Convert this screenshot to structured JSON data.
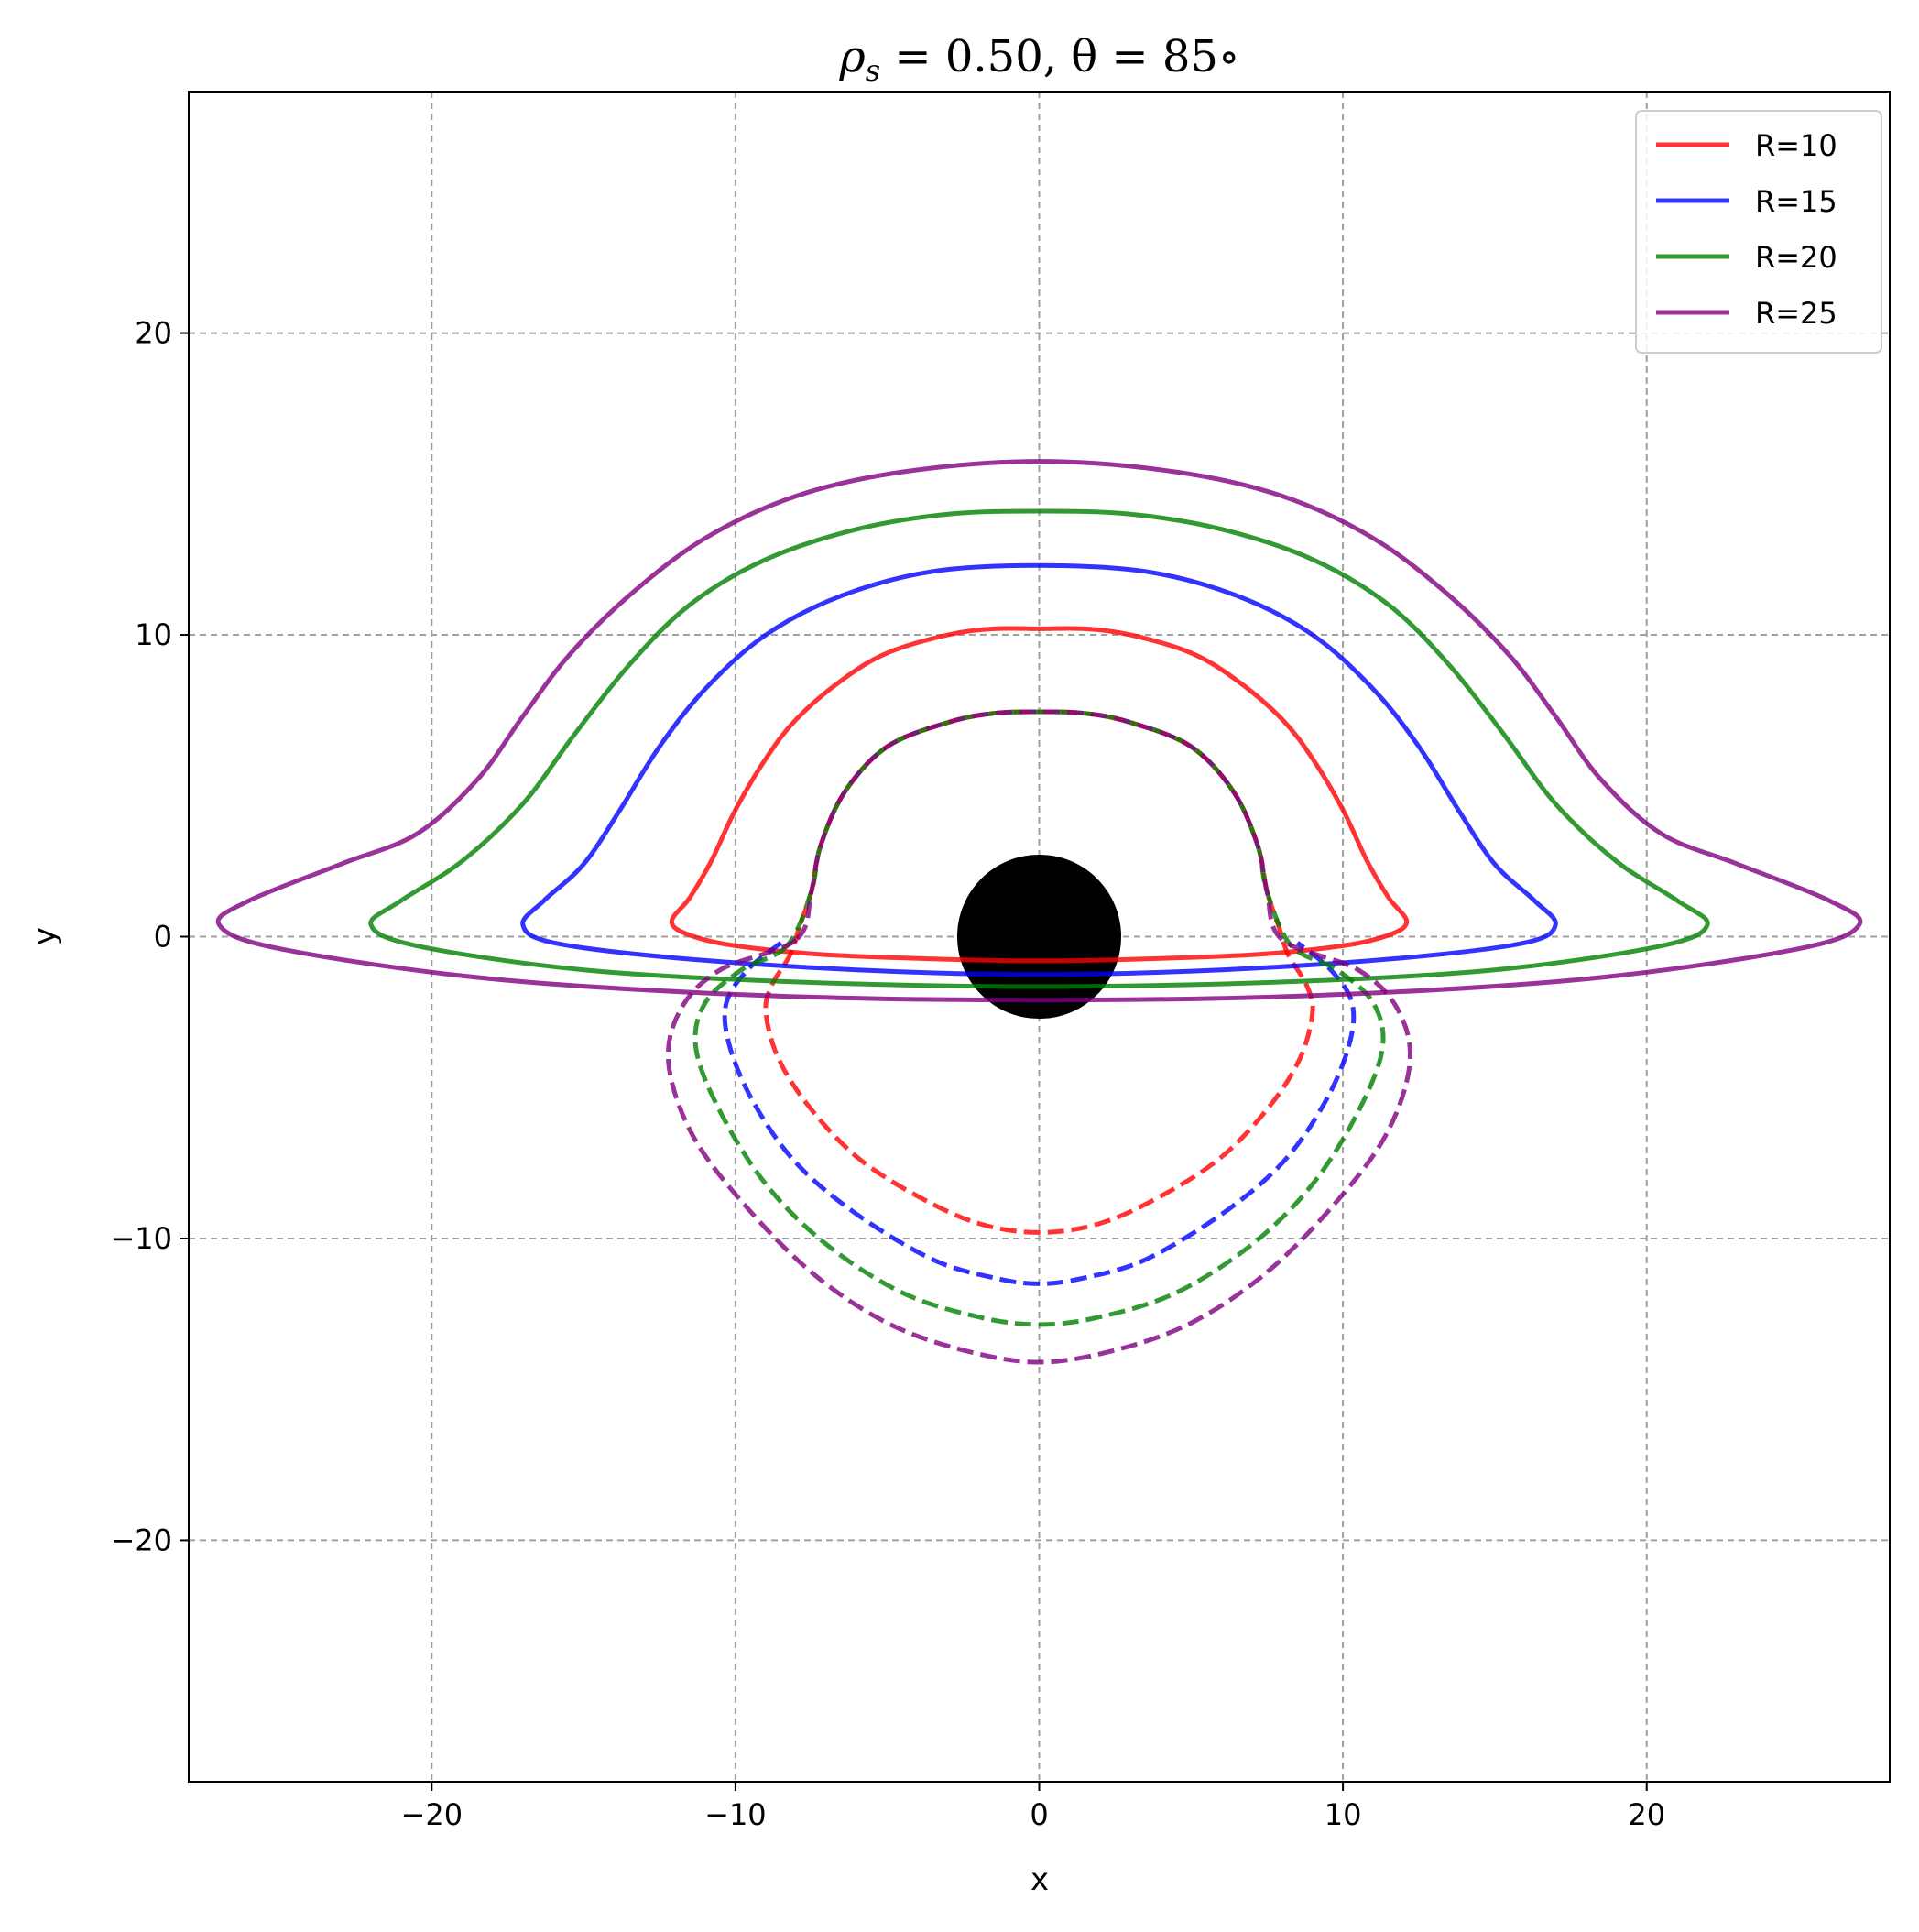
{
  "chart_data": {
    "type": "line",
    "title": "ρs = 0.50,  θ = 85°",
    "title_main": "ρ",
    "title_sub": "s",
    "title_rest": " = 0.50,  θ = 85∘",
    "xlabel": "x",
    "ylabel": "y",
    "xlim": [
      -28,
      28
    ],
    "ylim": [
      -28,
      28
    ],
    "xticks": [
      -20,
      -10,
      0,
      10,
      20
    ],
    "yticks": [
      -20,
      -10,
      0,
      10,
      20
    ],
    "xtick_labels": [
      "−20",
      "−10",
      "0",
      "10",
      "20"
    ],
    "ytick_labels": [
      "−20",
      "−10",
      "0",
      "10",
      "20"
    ],
    "grid": true,
    "legend_position": "top-right",
    "central_disk": {
      "x": 0,
      "y": 0,
      "radius": 2.7,
      "color": "#000000"
    },
    "series": [
      {
        "name": "R=10",
        "color": "#ff0000",
        "alpha": 0.8,
        "direct": {
          "style": "solid",
          "points": [
            [
              -12.1,
              0.5
            ],
            [
              -11.5,
              1.3
            ],
            [
              -10.8,
              2.5
            ],
            [
              -10,
              4.2
            ],
            [
              -9,
              5.9
            ],
            [
              -8,
              7.2
            ],
            [
              -6.5,
              8.5
            ],
            [
              -5,
              9.4
            ],
            [
              -3,
              10
            ],
            [
              -1.5,
              10.2
            ],
            [
              0,
              10.2
            ],
            [
              1.5,
              10.2
            ],
            [
              3,
              10
            ],
            [
              5,
              9.4
            ],
            [
              6.5,
              8.5
            ],
            [
              8,
              7.2
            ],
            [
              9,
              5.9
            ],
            [
              10,
              4.2
            ],
            [
              10.8,
              2.5
            ],
            [
              11.5,
              1.3
            ],
            [
              12.1,
              0.5
            ],
            [
              11.5,
              0.05
            ],
            [
              10,
              -0.3
            ],
            [
              7,
              -0.6
            ],
            [
              3,
              -0.75
            ],
            [
              0,
              -0.8
            ],
            [
              -3,
              -0.75
            ],
            [
              -7,
              -0.6
            ],
            [
              -10,
              -0.3
            ],
            [
              -11.5,
              0.05
            ],
            [
              -12.1,
              0.5
            ]
          ]
        },
        "secondary": {
          "style": "dashed",
          "points": [
            [
              -7.9,
              0.3
            ],
            [
              -8.2,
              -0.6
            ],
            [
              -8.8,
              -1.6
            ],
            [
              -9,
              -2.5
            ],
            [
              -8.6,
              -4
            ],
            [
              -7.6,
              -5.6
            ],
            [
              -6,
              -7.3
            ],
            [
              -4,
              -8.6
            ],
            [
              -2,
              -9.5
            ],
            [
              0,
              -9.8
            ],
            [
              2,
              -9.5
            ],
            [
              4,
              -8.6
            ],
            [
              6,
              -7.3
            ],
            [
              7.6,
              -5.6
            ],
            [
              8.6,
              -4
            ],
            [
              9,
              -2.5
            ],
            [
              8.8,
              -1.6
            ],
            [
              8.2,
              -0.6
            ],
            [
              7.9,
              0.3
            ],
            [
              7.5,
              1.5
            ],
            [
              7.2,
              3
            ],
            [
              6.4,
              4.8
            ],
            [
              5,
              6.3
            ],
            [
              3,
              7.1
            ],
            [
              1.5,
              7.4
            ],
            [
              0,
              7.45
            ],
            [
              -1.5,
              7.4
            ],
            [
              -3,
              7.1
            ],
            [
              -5,
              6.3
            ],
            [
              -6.4,
              4.8
            ],
            [
              -7.2,
              3
            ],
            [
              -7.5,
              1.5
            ],
            [
              -7.9,
              0.3
            ]
          ]
        }
      },
      {
        "name": "R=15",
        "color": "#0000ff",
        "alpha": 0.8,
        "direct": {
          "style": "solid",
          "points": [
            [
              -17,
              0.4
            ],
            [
              -16.3,
              1.2
            ],
            [
              -15,
              2.4
            ],
            [
              -13.8,
              4.2
            ],
            [
              -12.5,
              6.3
            ],
            [
              -11,
              8.2
            ],
            [
              -9,
              10
            ],
            [
              -6.5,
              11.3
            ],
            [
              -3.5,
              12.1
            ],
            [
              0,
              12.3
            ],
            [
              3.5,
              12.1
            ],
            [
              6.5,
              11.3
            ],
            [
              9,
              10
            ],
            [
              11,
              8.2
            ],
            [
              12.5,
              6.3
            ],
            [
              13.8,
              4.2
            ],
            [
              15,
              2.4
            ],
            [
              16.3,
              1.2
            ],
            [
              17,
              0.4
            ],
            [
              16,
              -0.2
            ],
            [
              12,
              -0.7
            ],
            [
              6,
              -1.1
            ],
            [
              0,
              -1.25
            ],
            [
              -6,
              -1.1
            ],
            [
              -12,
              -0.7
            ],
            [
              -16,
              -0.2
            ],
            [
              -17,
              0.4
            ]
          ]
        },
        "secondary": {
          "style": "dashed",
          "points": [
            [
              -8.5,
              -0.2
            ],
            [
              -9.6,
              -1.1
            ],
            [
              -10.3,
              -2.2
            ],
            [
              -10.2,
              -3.6
            ],
            [
              -9.4,
              -5.5
            ],
            [
              -8,
              -7.5
            ],
            [
              -6,
              -9.2
            ],
            [
              -3.5,
              -10.7
            ],
            [
              -1.5,
              -11.3
            ],
            [
              0,
              -11.5
            ],
            [
              1.5,
              -11.3
            ],
            [
              3.5,
              -10.7
            ],
            [
              6,
              -9.2
            ],
            [
              8,
              -7.5
            ],
            [
              9.4,
              -5.5
            ],
            [
              10.2,
              -3.6
            ],
            [
              10.3,
              -2.2
            ],
            [
              9.6,
              -1.1
            ],
            [
              8.5,
              -0.2
            ]
          ]
        }
      },
      {
        "name": "R=20",
        "color": "#008000",
        "alpha": 0.8,
        "direct": {
          "style": "solid",
          "points": [
            [
              -22,
              0.4
            ],
            [
              -21,
              1.2
            ],
            [
              -19,
              2.5
            ],
            [
              -17,
              4.4
            ],
            [
              -15.3,
              6.7
            ],
            [
              -13.5,
              9
            ],
            [
              -11.5,
              11
            ],
            [
              -9,
              12.5
            ],
            [
              -6,
              13.5
            ],
            [
              -3,
              14
            ],
            [
              0,
              14.1
            ],
            [
              3,
              14
            ],
            [
              6,
              13.5
            ],
            [
              9,
              12.5
            ],
            [
              11.5,
              11
            ],
            [
              13.5,
              9
            ],
            [
              15.3,
              6.7
            ],
            [
              17,
              4.4
            ],
            [
              19,
              2.5
            ],
            [
              21,
              1.2
            ],
            [
              22,
              0.4
            ],
            [
              20.5,
              -0.3
            ],
            [
              15,
              -1.1
            ],
            [
              8,
              -1.5
            ],
            [
              0,
              -1.65
            ],
            [
              -8,
              -1.5
            ],
            [
              -15,
              -1.1
            ],
            [
              -20.5,
              -0.3
            ],
            [
              -22,
              0.4
            ]
          ]
        },
        "secondary": {
          "style": "dashed",
          "points": [
            [
              -8.3,
              -0.3
            ],
            [
              -9.8,
              -1.1
            ],
            [
              -11,
              -2.2
            ],
            [
              -11.3,
              -3.7
            ],
            [
              -10.5,
              -5.8
            ],
            [
              -9,
              -8.2
            ],
            [
              -7,
              -10.2
            ],
            [
              -4.5,
              -11.8
            ],
            [
              -2,
              -12.6
            ],
            [
              0,
              -12.85
            ],
            [
              2,
              -12.6
            ],
            [
              4.5,
              -11.8
            ],
            [
              7,
              -10.2
            ],
            [
              9,
              -8.2
            ],
            [
              10.5,
              -5.8
            ],
            [
              11.3,
              -3.7
            ],
            [
              11,
              -2.2
            ],
            [
              9.8,
              -1.1
            ],
            [
              8.3,
              -0.3
            ],
            [
              7.5,
              1.5
            ],
            [
              7.2,
              3
            ],
            [
              6.4,
              4.8
            ],
            [
              5,
              6.3
            ],
            [
              3,
              7.1
            ],
            [
              1.5,
              7.4
            ],
            [
              0,
              7.45
            ],
            [
              -1.5,
              7.4
            ],
            [
              -3,
              7.1
            ],
            [
              -5,
              6.3
            ],
            [
              -6.4,
              4.8
            ],
            [
              -7.2,
              3
            ],
            [
              -7.5,
              1.5
            ],
            [
              -8.3,
              -0.3
            ]
          ]
        }
      },
      {
        "name": "R=25",
        "color": "#800080",
        "alpha": 0.8,
        "direct": {
          "style": "solid",
          "points": [
            [
              -27,
              0.4
            ],
            [
              -26,
              1.2
            ],
            [
              -23,
              2.4
            ],
            [
              -20.5,
              3.4
            ],
            [
              -18.5,
              5.2
            ],
            [
              -17,
              7.3
            ],
            [
              -15.5,
              9.3
            ],
            [
              -13.5,
              11.3
            ],
            [
              -11,
              13.2
            ],
            [
              -8,
              14.6
            ],
            [
              -4.5,
              15.4
            ],
            [
              0,
              15.75
            ],
            [
              4.5,
              15.4
            ],
            [
              8,
              14.6
            ],
            [
              11,
              13.2
            ],
            [
              13.5,
              11.3
            ],
            [
              15.5,
              9.3
            ],
            [
              17,
              7.3
            ],
            [
              18.5,
              5.2
            ],
            [
              20.5,
              3.4
            ],
            [
              23,
              2.4
            ],
            [
              26,
              1.2
            ],
            [
              27,
              0.4
            ],
            [
              25,
              -0.4
            ],
            [
              18,
              -1.4
            ],
            [
              9,
              -1.95
            ],
            [
              0,
              -2.1
            ],
            [
              -9,
              -1.95
            ],
            [
              -18,
              -1.4
            ],
            [
              -25,
              -0.4
            ],
            [
              -27,
              0.4
            ]
          ]
        },
        "secondary": {
          "style": "dashed",
          "points": [
            [
              -8,
              -0.1
            ],
            [
              -10.5,
              -1.1
            ],
            [
              -11.8,
              -2.4
            ],
            [
              -12.2,
              -4.2
            ],
            [
              -11.4,
              -6.6
            ],
            [
              -9.6,
              -9
            ],
            [
              -7.4,
              -11.2
            ],
            [
              -5,
              -12.8
            ],
            [
              -2.5,
              -13.7
            ],
            [
              0,
              -14.1
            ],
            [
              2.5,
              -13.7
            ],
            [
              5,
              -12.8
            ],
            [
              7.4,
              -11.2
            ],
            [
              9.6,
              -9
            ],
            [
              11.4,
              -6.6
            ],
            [
              12.2,
              -4.2
            ],
            [
              11.8,
              -2.4
            ],
            [
              10.5,
              -1.1
            ],
            [
              8,
              -0.1
            ],
            [
              7.5,
              1.5
            ],
            [
              7.2,
              3
            ],
            [
              6.4,
              4.8
            ],
            [
              5,
              6.3
            ],
            [
              3,
              7.1
            ],
            [
              1.5,
              7.4
            ],
            [
              0,
              7.45
            ],
            [
              -1.5,
              7.4
            ],
            [
              -3,
              7.1
            ],
            [
              -5,
              6.3
            ],
            [
              -6.4,
              4.8
            ],
            [
              -7.2,
              3
            ],
            [
              -7.5,
              1.5
            ],
            [
              -8,
              -0.1
            ]
          ]
        }
      }
    ]
  }
}
